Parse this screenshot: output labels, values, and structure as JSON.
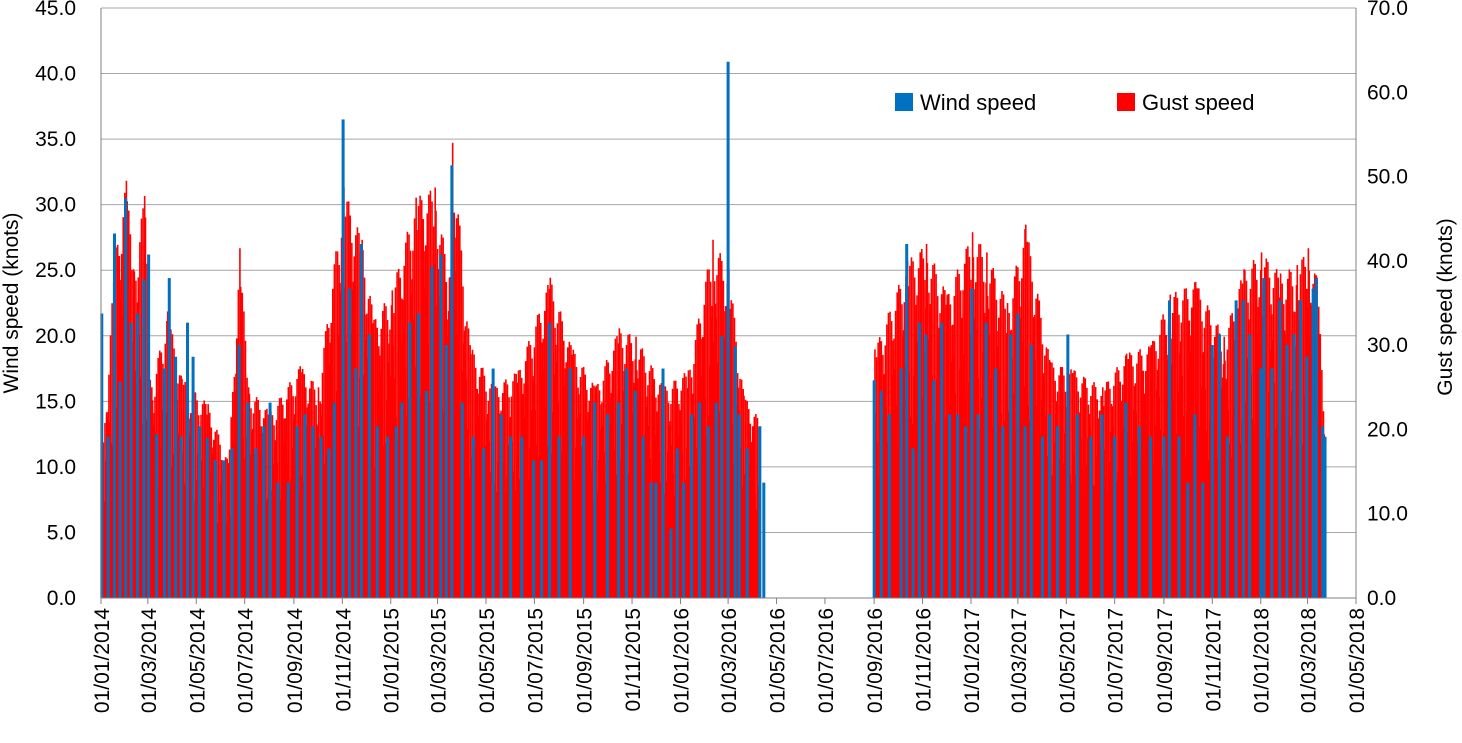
{
  "chart_data": {
    "type": "bar",
    "ylabel": "Wind speed (knots)",
    "y2label": "Gust speed (knots)",
    "ylim": [
      0,
      45
    ],
    "y2lim": [
      0,
      70
    ],
    "yticks": [
      "0.0",
      "5.0",
      "10.0",
      "15.0",
      "20.0",
      "25.0",
      "30.0",
      "35.0",
      "40.0",
      "45.0"
    ],
    "y2ticks": [
      "0.0",
      "10.0",
      "20.0",
      "30.0",
      "40.0",
      "50.0",
      "60.0",
      "70.0"
    ],
    "xlim": [
      "2014-01-01",
      "2018-05-01"
    ],
    "xticks": [
      "01/01/2014",
      "01/03/2014",
      "01/05/2014",
      "01/07/2014",
      "01/09/2014",
      "01/11/2014",
      "01/01/2015",
      "01/03/2015",
      "01/05/2015",
      "01/07/2015",
      "01/09/2015",
      "01/11/2015",
      "01/01/2016",
      "01/03/2016",
      "01/05/2016",
      "01/07/2016",
      "01/09/2016",
      "01/11/2016",
      "01/01/2017",
      "01/03/2017",
      "01/05/2017",
      "01/07/2017",
      "01/09/2017",
      "01/11/2017",
      "01/01/2018",
      "01/03/2018",
      "01/05/2018"
    ],
    "grid": true,
    "legend": "top-right",
    "colors": {
      "wind": "#0070C0",
      "gust": "#FF0000",
      "grid": "#A6A6A6",
      "axis": "#808080"
    },
    "series": [
      {
        "name": "Wind speed",
        "axis": "left",
        "description": "approximate daily wind speed peaks (knots)",
        "points": [
          [
            "2014-01-02",
            21.7
          ],
          [
            "2014-01-10",
            12.3
          ],
          [
            "2014-01-18",
            27.8
          ],
          [
            "2014-01-25",
            16.5
          ],
          [
            "2014-02-01",
            30.5
          ],
          [
            "2014-02-08",
            21.0
          ],
          [
            "2014-02-16",
            21.7
          ],
          [
            "2014-02-24",
            24.3
          ],
          [
            "2014-03-02",
            26.2
          ],
          [
            "2014-03-12",
            12.5
          ],
          [
            "2014-03-22",
            17.5
          ],
          [
            "2014-03-28",
            24.4
          ],
          [
            "2014-04-05",
            18.4
          ],
          [
            "2014-04-12",
            12.3
          ],
          [
            "2014-04-20",
            21.0
          ],
          [
            "2014-04-27",
            18.4
          ],
          [
            "2014-05-05",
            13.1
          ],
          [
            "2014-05-15",
            12.2
          ],
          [
            "2014-05-25",
            10.5
          ],
          [
            "2014-06-05",
            10.5
          ],
          [
            "2014-06-15",
            11.4
          ],
          [
            "2014-06-24",
            19.3
          ],
          [
            "2014-07-05",
            14.9
          ],
          [
            "2014-07-15",
            11.4
          ],
          [
            "2014-07-25",
            13.1
          ],
          [
            "2014-08-02",
            14.9
          ],
          [
            "2014-08-12",
            8.8
          ],
          [
            "2014-08-25",
            8.8
          ],
          [
            "2014-09-05",
            13.1
          ],
          [
            "2014-09-15",
            14.0
          ],
          [
            "2014-09-25",
            13.1
          ],
          [
            "2014-10-05",
            12.3
          ],
          [
            "2014-10-15",
            11.4
          ],
          [
            "2014-10-22",
            14.9
          ],
          [
            "2014-11-02",
            36.5
          ],
          [
            "2014-11-10",
            23.6
          ],
          [
            "2014-11-18",
            17.5
          ],
          [
            "2014-11-25",
            27.0
          ],
          [
            "2014-12-05",
            20.1
          ],
          [
            "2014-12-15",
            13.1
          ],
          [
            "2014-12-28",
            12.3
          ],
          [
            "2015-01-08",
            13.1
          ],
          [
            "2015-01-15",
            14.9
          ],
          [
            "2015-01-25",
            21.0
          ],
          [
            "2015-02-05",
            21.7
          ],
          [
            "2015-02-15",
            15.8
          ],
          [
            "2015-02-22",
            25.3
          ],
          [
            "2015-03-05",
            26.2
          ],
          [
            "2015-03-12",
            19.3
          ],
          [
            "2015-03-19",
            33.0
          ],
          [
            "2015-04-01",
            14.9
          ],
          [
            "2015-04-15",
            12.3
          ],
          [
            "2015-04-28",
            11.4
          ],
          [
            "2015-05-10",
            17.5
          ],
          [
            "2015-05-20",
            14.0
          ],
          [
            "2015-06-01",
            12.3
          ],
          [
            "2015-06-15",
            12.3
          ],
          [
            "2015-06-30",
            10.5
          ],
          [
            "2015-07-10",
            10.5
          ],
          [
            "2015-07-20",
            21.0
          ],
          [
            "2015-08-01",
            12.3
          ],
          [
            "2015-08-15",
            17.5
          ],
          [
            "2015-09-01",
            12.3
          ],
          [
            "2015-09-15",
            14.9
          ],
          [
            "2015-10-01",
            14.0
          ],
          [
            "2015-10-15",
            14.9
          ],
          [
            "2015-10-25",
            17.5
          ],
          [
            "2015-11-05",
            15.8
          ],
          [
            "2015-11-15",
            12.3
          ],
          [
            "2015-11-25",
            8.8
          ],
          [
            "2015-12-01",
            8.8
          ],
          [
            "2015-12-10",
            17.5
          ],
          [
            "2015-12-20",
            5.3
          ],
          [
            "2015-12-28",
            11.4
          ],
          [
            "2016-01-05",
            8.8
          ],
          [
            "2016-01-15",
            14.0
          ],
          [
            "2016-01-25",
            14.9
          ],
          [
            "2016-02-05",
            13.1
          ],
          [
            "2016-02-15",
            14.9
          ],
          [
            "2016-02-22",
            20.0
          ],
          [
            "2016-03-01",
            40.9
          ],
          [
            "2016-03-10",
            19.2
          ],
          [
            "2016-03-15",
            14.0
          ],
          [
            "2016-03-25",
            11.4
          ],
          [
            "2016-04-10",
            13.1
          ],
          [
            "2016-04-15",
            8.8
          ],
          [
            "2016-09-01",
            16.6
          ],
          [
            "2016-09-10",
            15.8
          ],
          [
            "2016-09-20",
            14.0
          ],
          [
            "2016-10-05",
            17.5
          ],
          [
            "2016-10-12",
            27.0
          ],
          [
            "2016-10-20",
            11.4
          ],
          [
            "2016-10-28",
            21.0
          ],
          [
            "2016-11-05",
            20.1
          ],
          [
            "2016-11-15",
            16.6
          ],
          [
            "2016-11-25",
            21.0
          ],
          [
            "2016-12-05",
            14.0
          ],
          [
            "2016-12-15",
            14.0
          ],
          [
            "2016-12-25",
            13.1
          ],
          [
            "2017-01-02",
            23.6
          ],
          [
            "2017-01-10",
            14.0
          ],
          [
            "2017-01-20",
            21.0
          ],
          [
            "2017-02-01",
            17.5
          ],
          [
            "2017-02-10",
            13.1
          ],
          [
            "2017-02-20",
            20.1
          ],
          [
            "2017-03-01",
            21.7
          ],
          [
            "2017-03-10",
            13.1
          ],
          [
            "2017-03-18",
            19.3
          ],
          [
            "2017-04-01",
            12.3
          ],
          [
            "2017-04-10",
            14.0
          ],
          [
            "2017-04-20",
            13.1
          ],
          [
            "2017-05-03",
            20.1
          ],
          [
            "2017-05-15",
            14.0
          ],
          [
            "2017-06-01",
            12.3
          ],
          [
            "2017-06-15",
            14.0
          ],
          [
            "2017-07-01",
            12.3
          ],
          [
            "2017-07-15",
            14.9
          ],
          [
            "2017-08-01",
            13.1
          ],
          [
            "2017-08-15",
            12.3
          ],
          [
            "2017-09-01",
            12.3
          ],
          [
            "2017-09-08",
            22.7
          ],
          [
            "2017-09-20",
            12.3
          ],
          [
            "2017-10-01",
            8.8
          ],
          [
            "2017-10-10",
            14.0
          ],
          [
            "2017-10-20",
            8.8
          ],
          [
            "2017-11-01",
            19.3
          ],
          [
            "2017-11-10",
            20.1
          ],
          [
            "2017-11-20",
            12.3
          ],
          [
            "2017-12-01",
            22.7
          ],
          [
            "2017-12-10",
            22.7
          ],
          [
            "2017-12-18",
            20.1
          ],
          [
            "2018-01-01",
            17.5
          ],
          [
            "2018-01-05",
            24.4
          ],
          [
            "2018-01-15",
            17.5
          ],
          [
            "2018-01-25",
            22.7
          ],
          [
            "2018-02-03",
            19.3
          ],
          [
            "2018-02-12",
            20.1
          ],
          [
            "2018-02-20",
            22.7
          ],
          [
            "2018-02-28",
            18.4
          ],
          [
            "2018-03-08",
            23.6
          ],
          [
            "2018-03-12",
            24.4
          ],
          [
            "2018-03-20",
            13.1
          ],
          [
            "2018-03-23",
            12.3
          ]
        ]
      },
      {
        "name": "Gust speed",
        "axis": "right",
        "description": "approximate daily gust speed peaks (knots)",
        "points": [
          [
            "2014-01-02",
            17.0
          ],
          [
            "2014-01-18",
            41.0
          ],
          [
            "2014-02-01",
            49.5
          ],
          [
            "2014-02-10",
            39.0
          ],
          [
            "2014-02-24",
            47.7
          ],
          [
            "2014-03-05",
            25.0
          ],
          [
            "2014-03-25",
            34.0
          ],
          [
            "2014-04-12",
            26.0
          ],
          [
            "2014-05-15",
            23.0
          ],
          [
            "2014-06-10",
            16.0
          ],
          [
            "2014-06-24",
            41.5
          ],
          [
            "2014-07-05",
            25.0
          ],
          [
            "2014-08-01",
            22.0
          ],
          [
            "2014-09-08",
            27.5
          ],
          [
            "2014-10-01",
            25.0
          ],
          [
            "2014-11-02",
            48.7
          ],
          [
            "2014-11-25",
            42.5
          ],
          [
            "2014-12-10",
            33.0
          ],
          [
            "2015-01-02",
            36.5
          ],
          [
            "2015-02-01",
            47.5
          ],
          [
            "2015-02-25",
            48.7
          ],
          [
            "2015-03-15",
            38.0
          ],
          [
            "2015-03-19",
            54.0
          ],
          [
            "2015-04-10",
            30.0
          ],
          [
            "2015-05-10",
            25.0
          ],
          [
            "2015-06-10",
            27.0
          ],
          [
            "2015-07-20",
            38.0
          ],
          [
            "2015-08-15",
            30.0
          ],
          [
            "2015-09-15",
            25.0
          ],
          [
            "2015-10-15",
            32.0
          ],
          [
            "2015-11-05",
            31.0
          ],
          [
            "2015-12-10",
            25.0
          ],
          [
            "2016-01-10",
            27.0
          ],
          [
            "2016-02-10",
            42.5
          ],
          [
            "2016-03-01",
            39.0
          ],
          [
            "2016-03-20",
            24.0
          ],
          [
            "2016-04-10",
            21.0
          ],
          [
            "2016-09-01",
            29.5
          ],
          [
            "2016-10-12",
            40.0
          ],
          [
            "2016-11-05",
            42.0
          ],
          [
            "2016-12-01",
            36.0
          ],
          [
            "2017-01-02",
            43.4
          ],
          [
            "2017-01-20",
            41.0
          ],
          [
            "2017-02-15",
            35.0
          ],
          [
            "2017-03-10",
            44.3
          ],
          [
            "2017-04-10",
            28.0
          ],
          [
            "2017-05-10",
            27.0
          ],
          [
            "2017-06-15",
            25.0
          ],
          [
            "2017-07-15",
            29.0
          ],
          [
            "2017-08-15",
            30.0
          ],
          [
            "2017-09-08",
            36.0
          ],
          [
            "2017-10-10",
            37.5
          ],
          [
            "2017-11-15",
            31.0
          ],
          [
            "2017-12-10",
            39.0
          ],
          [
            "2018-01-01",
            41.0
          ],
          [
            "2018-01-25",
            38.5
          ],
          [
            "2018-02-15",
            39.5
          ],
          [
            "2018-03-01",
            41.5
          ],
          [
            "2018-03-12",
            38.0
          ],
          [
            "2018-03-23",
            20.0
          ]
        ]
      }
    ]
  }
}
